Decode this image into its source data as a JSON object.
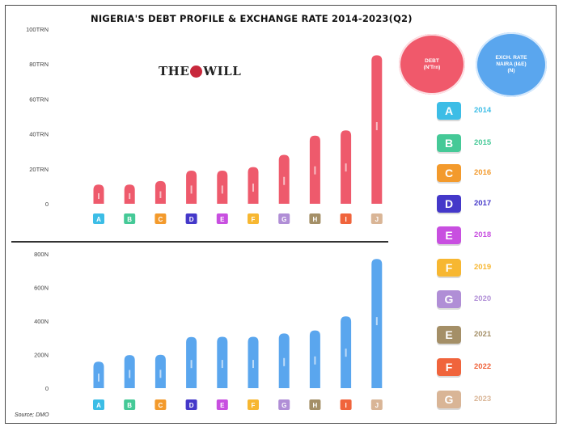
{
  "title": "NIGERIA'S DEBT PROFILE & EXCHANGE RATE 2014-2023(Q2)",
  "logo": {
    "left": "THE",
    "right": "WILL"
  },
  "source": "Source; DMO",
  "debt_circle": {
    "line1": "DEBT",
    "line2": "(N'Trn)"
  },
  "exch_circle": {
    "line1": "EXCH. RATE",
    "line2": "NAIRA (I&E)",
    "line3": "(N)"
  },
  "legend": [
    {
      "letter": "A",
      "year": "2014",
      "color": "#3cbde6",
      "text_color": "#3cbde6"
    },
    {
      "letter": "B",
      "year": "2015",
      "color": "#45c997",
      "text_color": "#45c997"
    },
    {
      "letter": "C",
      "year": "2016",
      "color": "#f39a2c",
      "text_color": "#f39a2c"
    },
    {
      "letter": "D",
      "year": "2017",
      "color": "#4438c9",
      "text_color": "#4438c9"
    },
    {
      "letter": "E",
      "year": "2018",
      "color": "#c84fe0",
      "text_color": "#c84fe0"
    },
    {
      "letter": "F",
      "year": "2019",
      "color": "#f7b731",
      "text_color": "#f7b731"
    },
    {
      "letter": "G",
      "year": "2020",
      "color": "#b08ed6",
      "text_color": "#b08ed6"
    },
    {
      "letter": "E",
      "year": "2021",
      "color": "#a48f67",
      "text_color": "#a48f67"
    },
    {
      "letter": "F",
      "year": "2022",
      "color": "#f0643c",
      "text_color": "#f0643c"
    },
    {
      "letter": "G",
      "year": "2023",
      "color": "#d9b596",
      "text_color": "#d9b596"
    }
  ],
  "chart_data": [
    {
      "type": "bar",
      "name": "Debt",
      "categories": [
        "A",
        "B",
        "C",
        "D",
        "E",
        "F",
        "G",
        "H",
        "I",
        "J"
      ],
      "category_colors": [
        "#3cbde6",
        "#45c997",
        "#f39a2c",
        "#4438c9",
        "#c84fe0",
        "#f7b731",
        "#b08ed6",
        "#a48f67",
        "#f0643c",
        "#d9b596"
      ],
      "values": [
        11,
        11,
        13,
        19,
        19,
        21,
        28,
        39,
        42,
        85
      ],
      "ylim": [
        0,
        100
      ],
      "yticks": [
        0,
        20,
        40,
        60,
        80,
        100
      ],
      "ytick_labels": [
        "0",
        "20TRN",
        "40TRN",
        "60TRN",
        "80TRN",
        "100TRN"
      ],
      "bar_color": "#ee5a6c"
    },
    {
      "type": "bar",
      "name": "Exchange rate",
      "categories": [
        "A",
        "B",
        "C",
        "D",
        "E",
        "F",
        "G",
        "H",
        "I",
        "J"
      ],
      "category_colors": [
        "#3cbde6",
        "#45c997",
        "#f39a2c",
        "#4438c9",
        "#c84fe0",
        "#f7b731",
        "#b08ed6",
        "#a48f67",
        "#f0643c",
        "#d9b596"
      ],
      "values": [
        158,
        197,
        199,
        305,
        306,
        306,
        326,
        344,
        428,
        770
      ],
      "ylim": [
        0,
        800
      ],
      "yticks": [
        0,
        200,
        400,
        600,
        800
      ],
      "ytick_labels": [
        "0",
        "200N",
        "400N",
        "600N",
        "800N"
      ],
      "bar_color": "#5aa6ee"
    }
  ]
}
